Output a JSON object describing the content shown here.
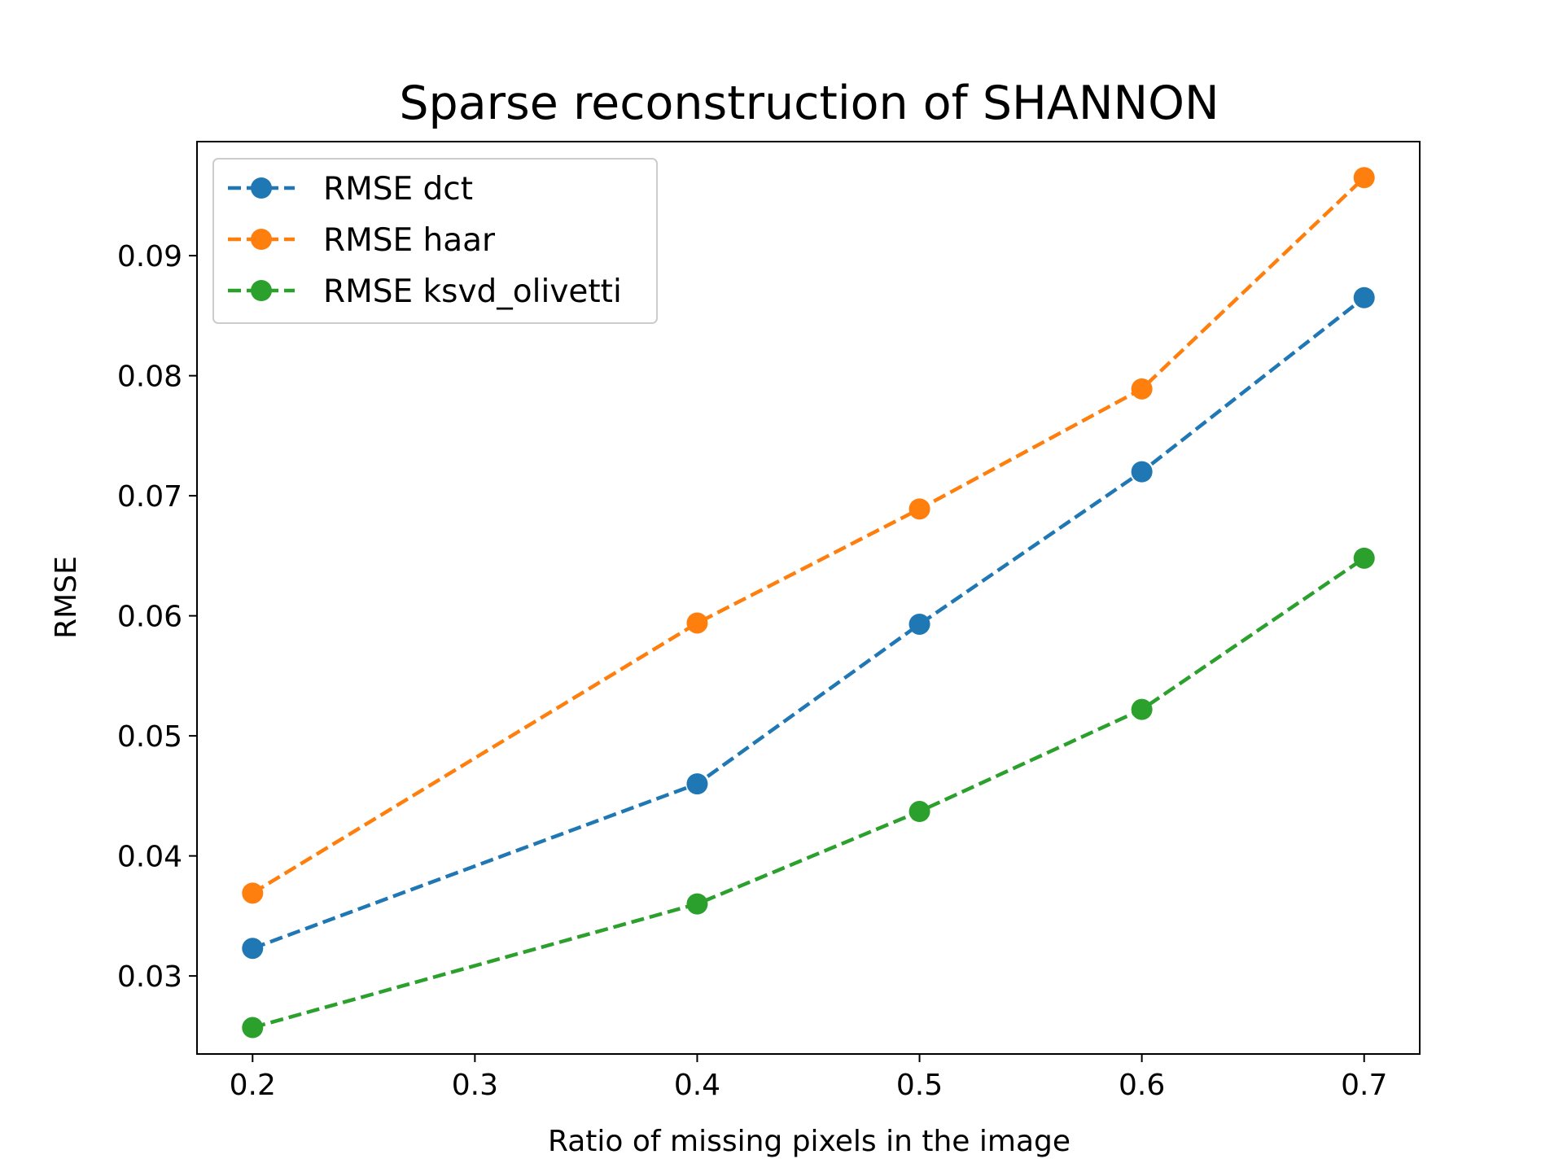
{
  "chart_data": {
    "type": "line",
    "title": "Sparse reconstruction of SHANNON",
    "xlabel": "Ratio of missing pixels in the image",
    "ylabel": "RMSE",
    "xlim": [
      0.175,
      0.725
    ],
    "ylim": [
      0.0235,
      0.0995
    ],
    "x_ticks": [
      0.2,
      0.3,
      0.4,
      0.5,
      0.6,
      0.7
    ],
    "x_tick_labels": [
      "0.2",
      "0.3",
      "0.4",
      "0.5",
      "0.6",
      "0.7"
    ],
    "y_ticks": [
      0.03,
      0.04,
      0.05,
      0.06,
      0.07,
      0.08,
      0.09
    ],
    "y_tick_labels": [
      "0.03",
      "0.04",
      "0.05",
      "0.06",
      "0.07",
      "0.08",
      "0.09"
    ],
    "grid": false,
    "legend_position": "top-left",
    "line_style": "dashed",
    "marker": "circle",
    "x": [
      0.2,
      0.4,
      0.5,
      0.6,
      0.7
    ],
    "series": [
      {
        "name": "RMSE dct",
        "color": "#1f77b4",
        "values": [
          0.0323,
          0.046,
          0.0593,
          0.072,
          0.0865
        ]
      },
      {
        "name": "RMSE haar",
        "color": "#ff7f0e",
        "values": [
          0.0369,
          0.0594,
          0.0689,
          0.0789,
          0.0965
        ]
      },
      {
        "name": "RMSE ksvd_olivetti",
        "color": "#2ca02c",
        "values": [
          0.0257,
          0.036,
          0.0437,
          0.0522,
          0.0648
        ]
      }
    ]
  }
}
